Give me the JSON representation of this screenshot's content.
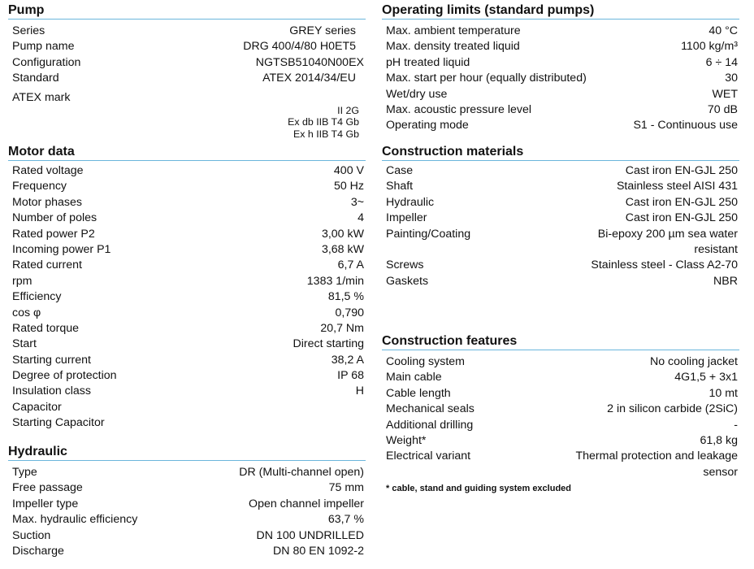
{
  "pump": {
    "title": "Pump",
    "rows": [
      {
        "label": "Series",
        "value": "GREY series"
      },
      {
        "label": "Pump name",
        "value": "DRG 400/4/80 H0ET5"
      },
      {
        "label": "Configuration",
        "value": "NGTSB51040N00EX"
      },
      {
        "label": "Standard",
        "value": "ATEX 2014/34/EU"
      }
    ],
    "atex_label": "ATEX mark",
    "atex_lines": [
      "II 2G",
      "Ex db IIB T4 Gb",
      "Ex h IIB T4 Gb"
    ]
  },
  "motor": {
    "title": "Motor data",
    "rows": [
      {
        "label": "Rated voltage",
        "value": "400 V"
      },
      {
        "label": "Frequency",
        "value": "50 Hz"
      },
      {
        "label": "Motor phases",
        "value": "3~"
      },
      {
        "label": "Number of poles",
        "value": "4"
      },
      {
        "label": "Rated power P2",
        "value": "3,00 kW"
      },
      {
        "label": "Incoming power P1",
        "value": "3,68 kW"
      },
      {
        "label": "Rated current",
        "value": "6,7 A"
      },
      {
        "label": "rpm",
        "value": "1383 1/min"
      },
      {
        "label": "Efficiency",
        "value": "81,5 %"
      },
      {
        "label": "cos φ",
        "value": "0,790"
      },
      {
        "label": "Rated torque",
        "value": "20,7 Nm"
      },
      {
        "label": "Start",
        "value": "Direct starting"
      },
      {
        "label": "Starting current",
        "value": "38,2 A"
      },
      {
        "label": "Degree of protection",
        "value": "IP 68"
      },
      {
        "label": "Insulation class",
        "value": "H"
      },
      {
        "label": "Capacitor",
        "value": ""
      },
      {
        "label": "Starting Capacitor",
        "value": ""
      }
    ]
  },
  "hydraulic": {
    "title": "Hydraulic",
    "rows": [
      {
        "label": "Type",
        "value": "DR (Multi-channel open)"
      },
      {
        "label": "Free passage",
        "value": "75 mm"
      },
      {
        "label": "Impeller type",
        "value": "Open channel impeller"
      },
      {
        "label": "Max. hydraulic efficiency",
        "value": "63,7 %"
      },
      {
        "label": "Suction",
        "value": "DN 100 UNDRILLED"
      },
      {
        "label": "Discharge",
        "value": "DN 80 EN 1092-2"
      }
    ]
  },
  "operating_limits": {
    "title": "Operating limits (standard pumps)",
    "rows": [
      {
        "label": "Max. ambient temperature",
        "value": "40 °C"
      },
      {
        "label": "Max. density treated liquid",
        "value": "1100 kg/m³"
      },
      {
        "label": "pH treated liquid",
        "value": "6 ÷ 14"
      },
      {
        "label": "Max.  start per hour (equally distributed)",
        "value": "30"
      },
      {
        "label": "Wet/dry use",
        "value": "WET"
      },
      {
        "label": "Max. acoustic pressure level",
        "value": "70 dB"
      },
      {
        "label": "Operating mode",
        "value": "S1 - Continuous use"
      }
    ]
  },
  "materials": {
    "title": "Construction materials",
    "rows": [
      {
        "label": "Case",
        "value": "Cast iron EN-GJL 250"
      },
      {
        "label": "Shaft",
        "value": "Stainless steel AISI 431"
      },
      {
        "label": "Hydraulic",
        "value": "Cast iron EN-GJL 250"
      },
      {
        "label": "Impeller",
        "value": "Cast iron EN-GJL 250"
      }
    ],
    "painting": {
      "label": "Painting/Coating",
      "value_line1": "Bi-epoxy 200 µm sea water",
      "value_line2": "resistant"
    },
    "rows2": [
      {
        "label": "Screws",
        "value": "Stainless steel - Class A2-70"
      },
      {
        "label": "Gaskets",
        "value": "NBR"
      }
    ]
  },
  "features": {
    "title": "Construction features",
    "rows": [
      {
        "label": "Cooling system",
        "value": "No cooling jacket"
      },
      {
        "label": "Main cable",
        "value": "4G1,5 + 3x1"
      },
      {
        "label": "Cable length",
        "value": "10 mt"
      },
      {
        "label": "Mechanical seals",
        "value": "2 in silicon carbide (2SiC)"
      },
      {
        "label": "Additional drilling",
        "value": "-"
      },
      {
        "label": "Weight*",
        "value": "61,8 kg"
      }
    ],
    "electrical": {
      "label": "Electrical variant",
      "value_line1": "Thermal protection and leakage",
      "value_line2": "sensor"
    },
    "footnote": "* cable, stand and guiding system excluded"
  },
  "colors": {
    "rule": "#6bb6dc"
  }
}
